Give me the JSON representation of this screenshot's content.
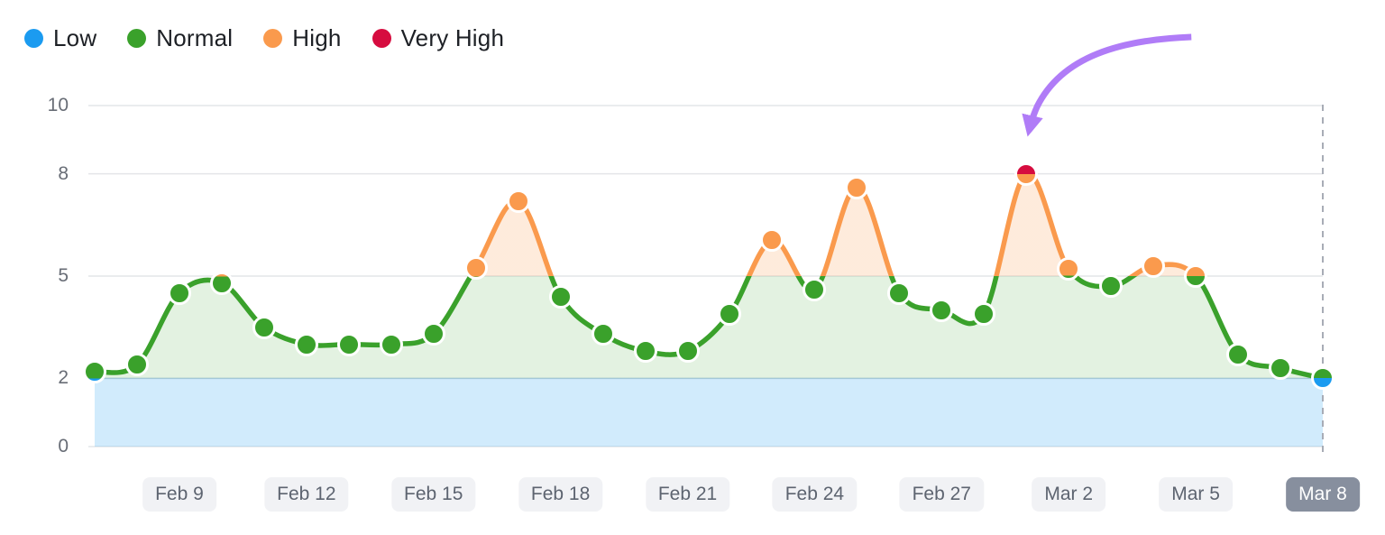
{
  "legend": {
    "items": [
      {
        "key": "low",
        "label": "Low",
        "color": "#1b9bf0"
      },
      {
        "key": "normal",
        "label": "Normal",
        "color": "#3aa12b"
      },
      {
        "key": "high",
        "label": "High",
        "color": "#fa9a4d"
      },
      {
        "key": "very_high",
        "label": "Very High",
        "color": "#d60c3f"
      }
    ]
  },
  "y_axis": {
    "ticks": [
      10,
      8,
      5,
      2,
      0
    ],
    "gridline_values": [
      10,
      8,
      5,
      0
    ],
    "min": 0,
    "max": 10
  },
  "x_axis": {
    "ticks": [
      {
        "label": "Feb 9",
        "index": 2,
        "selected": false
      },
      {
        "label": "Feb 12",
        "index": 5,
        "selected": false
      },
      {
        "label": "Feb 15",
        "index": 8,
        "selected": false
      },
      {
        "label": "Feb 18",
        "index": 11,
        "selected": false
      },
      {
        "label": "Feb 21",
        "index": 14,
        "selected": false
      },
      {
        "label": "Feb 24",
        "index": 17,
        "selected": false
      },
      {
        "label": "Feb 27",
        "index": 20,
        "selected": false
      },
      {
        "label": "Mar 2",
        "index": 23,
        "selected": false
      },
      {
        "label": "Mar 5",
        "index": 26,
        "selected": false
      },
      {
        "label": "Mar 8",
        "index": 29,
        "selected": true
      }
    ],
    "selected_label": "Mar 8"
  },
  "chart_data": {
    "type": "line",
    "x": [
      "Feb 7",
      "Feb 8",
      "Feb 9",
      "Feb 10",
      "Feb 11",
      "Feb 12",
      "Feb 13",
      "Feb 14",
      "Feb 15",
      "Feb 16",
      "Feb 17",
      "Feb 18",
      "Feb 19",
      "Feb 20",
      "Feb 21",
      "Feb 22",
      "Feb 23",
      "Feb 24",
      "Feb 25",
      "Feb 26",
      "Feb 27",
      "Feb 28",
      "Mar 1",
      "Mar 2",
      "Mar 3",
      "Mar 4",
      "Mar 5",
      "Mar 6",
      "Mar 7",
      "Mar 8"
    ],
    "values": [
      2.2,
      2.4,
      4.5,
      4.8,
      3.5,
      3.0,
      3.0,
      3.0,
      3.3,
      5.25,
      7.2,
      4.4,
      3.3,
      2.8,
      2.8,
      3.9,
      6.05,
      4.6,
      7.6,
      4.5,
      4.0,
      3.9,
      8.0,
      5.2,
      4.7,
      5.3,
      5.0,
      2.7,
      2.3,
      2.0
    ],
    "statuses": [
      "normal",
      "normal",
      "normal",
      "normal",
      "normal",
      "normal",
      "normal",
      "normal",
      "normal",
      "high",
      "high",
      "normal",
      "normal",
      "normal",
      "normal",
      "normal",
      "high",
      "normal",
      "high",
      "normal",
      "normal",
      "normal",
      "very_high",
      "high",
      "normal",
      "high",
      "high",
      "normal",
      "normal",
      "low"
    ],
    "thresholds": {
      "low_max": 2,
      "normal_max": 5,
      "high_max": 8
    },
    "series_colors": {
      "low": "#1b9bf0",
      "normal": "#3aa12b",
      "high": "#fa9a4d",
      "very_high": "#d60c3f"
    },
    "zone_fills": {
      "low_band": "rgba(27,155,240,0.20)",
      "low_band_border": "rgba(100,150,190,0.45)",
      "normal_area": "rgba(58,161,43,0.14)",
      "high_area": "rgba(250,154,77,0.20)"
    },
    "ylim": [
      0,
      10
    ],
    "grid": {
      "color": "#e4e5e9",
      "dashed_marker_line_color": "#a8acb6"
    },
    "annotation": {
      "type": "arrow",
      "color": "#b07cf7",
      "points_to_x": "Mar 1",
      "points_to_value": 8.0
    }
  }
}
